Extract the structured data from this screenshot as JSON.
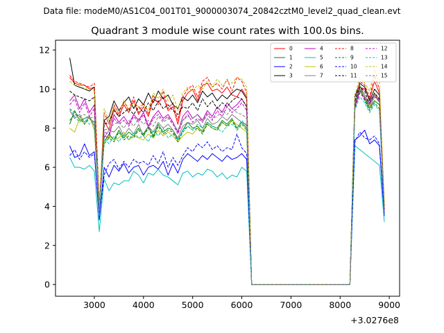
{
  "figure": {
    "suptitle": "Data file: modeM0/AS1C04_001T01_9000003074_20842cztM0_level2_quad_clean.evt",
    "title": "Quadrant 3 module wise count rates with 100.0s bins."
  },
  "chart_data": {
    "type": "line",
    "title": "Quadrant 3 module wise count rates with 100.0s bins.",
    "xlabel": "",
    "ylabel": "",
    "x_offset_label": "+3.0276e8",
    "xlim": [
      2210,
      9210
    ],
    "ylim": [
      -0.6,
      12.5
    ],
    "xticks": [
      3000,
      4000,
      5000,
      6000,
      7000,
      8000,
      9000
    ],
    "yticks": [
      0,
      2,
      4,
      6,
      8,
      10,
      12
    ],
    "grid": false,
    "legend": {
      "position": "top-right",
      "columns": 4
    },
    "x": [
      2500,
      2600,
      2700,
      2800,
      2900,
      3000,
      3100,
      3200,
      3300,
      3400,
      3500,
      3600,
      3700,
      3800,
      3900,
      4000,
      4100,
      4200,
      4300,
      4400,
      4500,
      4600,
      4700,
      4800,
      4900,
      5000,
      5100,
      5200,
      5300,
      5400,
      5500,
      5600,
      5700,
      5800,
      5900,
      6000,
      6100,
      6200,
      6300,
      6400,
      6500,
      6600,
      6700,
      6800,
      6900,
      7000,
      7100,
      7200,
      7300,
      7400,
      7500,
      7600,
      7700,
      7800,
      7900,
      8000,
      8100,
      8200,
      8300,
      8400,
      8500,
      8600,
      8700,
      8800,
      8900
    ],
    "series": [
      {
        "name": "0",
        "color": "#ff0000",
        "dash": "solid",
        "values": [
          10.6,
          10.3,
          10.2,
          10.2,
          10.0,
          10.1,
          3.8,
          8.4,
          7.9,
          9.0,
          8.6,
          9.2,
          8.8,
          9.4,
          8.7,
          9.1,
          8.6,
          9.5,
          9.3,
          9.6,
          8.9,
          9.1,
          8.2,
          9.4,
          9.8,
          10.0,
          9.4,
          10.2,
          10.3,
          9.9,
          10.0,
          9.8,
          10.1,
          9.7,
          9.6,
          10.0,
          9.6,
          0.0,
          0.0,
          0.0,
          0.0,
          0.0,
          0.0,
          0.0,
          0.0,
          0.0,
          0.0,
          0.0,
          0.0,
          0.0,
          0.0,
          0.0,
          0.0,
          0.0,
          0.0,
          0.0,
          0.0,
          0.0,
          9.0,
          10.1,
          10.0,
          9.5,
          10.4,
          9.8,
          3.8
        ]
      },
      {
        "name": "1",
        "color": "#008000",
        "dash": "solid",
        "values": [
          8.2,
          8.9,
          8.4,
          8.5,
          8.6,
          8.1,
          3.9,
          7.3,
          7.7,
          7.4,
          7.9,
          7.5,
          7.8,
          7.6,
          8.0,
          7.7,
          8.1,
          7.6,
          8.2,
          7.8,
          8.0,
          7.9,
          7.4,
          7.9,
          8.3,
          8.0,
          8.1,
          7.8,
          8.3,
          8.1,
          8.0,
          8.4,
          8.2,
          8.5,
          8.0,
          8.3,
          8.0,
          0.0,
          0.0,
          0.0,
          0.0,
          0.0,
          0.0,
          0.0,
          0.0,
          0.0,
          0.0,
          0.0,
          0.0,
          0.0,
          0.0,
          0.0,
          0.0,
          0.0,
          0.0,
          0.0,
          0.0,
          0.0,
          9.3,
          10.2,
          9.5,
          9.0,
          9.4,
          9.2,
          3.9
        ]
      },
      {
        "name": "2",
        "color": "#0000ff",
        "dash": "solid",
        "values": [
          7.1,
          6.5,
          6.6,
          7.2,
          6.6,
          6.8,
          3.3,
          6.0,
          5.5,
          6.1,
          5.8,
          6.2,
          5.7,
          6.0,
          6.1,
          5.6,
          6.0,
          6.1,
          5.9,
          6.3,
          5.6,
          6.2,
          5.7,
          6.4,
          6.7,
          6.5,
          6.3,
          6.6,
          6.4,
          6.7,
          6.5,
          6.3,
          6.6,
          6.4,
          6.5,
          6.7,
          6.4,
          0.0,
          0.0,
          0.0,
          0.0,
          0.0,
          0.0,
          0.0,
          0.0,
          0.0,
          0.0,
          0.0,
          0.0,
          0.0,
          0.0,
          0.0,
          0.0,
          0.0,
          0.0,
          0.0,
          0.0,
          0.0,
          7.4,
          7.6,
          7.9,
          7.2,
          7.4,
          7.1,
          3.5
        ]
      },
      {
        "name": "3",
        "color": "#000000",
        "dash": "solid",
        "values": [
          11.6,
          10.2,
          10.1,
          10.0,
          9.9,
          10.1,
          4.0,
          8.4,
          8.6,
          9.4,
          8.9,
          9.3,
          9.6,
          9.0,
          9.5,
          9.2,
          9.8,
          9.3,
          9.9,
          9.5,
          9.7,
          9.2,
          9.0,
          9.6,
          9.4,
          9.7,
          9.3,
          9.9,
          9.6,
          9.8,
          9.4,
          9.7,
          9.5,
          9.8,
          10.0,
          9.9,
          9.5,
          0.0,
          0.0,
          0.0,
          0.0,
          0.0,
          0.0,
          0.0,
          0.0,
          0.0,
          0.0,
          0.0,
          0.0,
          0.0,
          0.0,
          0.0,
          0.0,
          0.0,
          0.0,
          0.0,
          0.0,
          0.0,
          9.6,
          10.3,
          10.1,
          9.4,
          10.0,
          9.7,
          4.0
        ]
      },
      {
        "name": "4",
        "color": "#bf00bf",
        "dash": "solid",
        "values": [
          9.4,
          9.7,
          9.0,
          9.5,
          8.8,
          9.2,
          3.6,
          7.6,
          7.5,
          8.7,
          8.3,
          8.6,
          8.2,
          8.7,
          8.4,
          8.8,
          8.1,
          8.6,
          8.9,
          8.5,
          8.7,
          8.3,
          7.8,
          8.6,
          8.9,
          8.5,
          8.7,
          8.4,
          8.9,
          8.6,
          9.1,
          8.8,
          9.3,
          9.0,
          9.2,
          9.5,
          9.1,
          0.0,
          0.0,
          0.0,
          0.0,
          0.0,
          0.0,
          0.0,
          0.0,
          0.0,
          0.0,
          0.0,
          0.0,
          0.0,
          0.0,
          0.0,
          0.0,
          0.0,
          0.0,
          0.0,
          0.0,
          0.0,
          9.1,
          9.9,
          9.6,
          9.3,
          9.8,
          9.4,
          3.7
        ]
      },
      {
        "name": "5",
        "color": "#00bfbf",
        "dash": "solid",
        "values": [
          6.5,
          6.0,
          6.0,
          5.9,
          6.1,
          5.8,
          2.7,
          5.4,
          4.8,
          5.2,
          5.1,
          5.3,
          5.3,
          5.8,
          5.6,
          5.2,
          5.7,
          5.6,
          5.9,
          5.6,
          5.5,
          5.3,
          5.1,
          5.7,
          5.8,
          5.5,
          5.7,
          5.6,
          5.9,
          5.8,
          5.5,
          5.7,
          5.4,
          5.6,
          5.5,
          6.0,
          5.8,
          0.0,
          0.0,
          0.0,
          0.0,
          0.0,
          0.0,
          0.0,
          0.0,
          0.0,
          0.0,
          0.0,
          0.0,
          0.0,
          0.0,
          0.0,
          0.0,
          0.0,
          0.0,
          0.0,
          0.0,
          0.0,
          7.1,
          6.9,
          6.7,
          6.5,
          6.3,
          6.1,
          3.2
        ]
      },
      {
        "name": "6",
        "color": "#bfbf00",
        "dash": "solid",
        "values": [
          8.0,
          7.8,
          8.5,
          8.2,
          8.6,
          7.9,
          3.9,
          7.3,
          7.6,
          7.4,
          7.5,
          7.8,
          7.4,
          7.6,
          7.5,
          7.4,
          7.7,
          7.5,
          7.9,
          7.6,
          7.8,
          7.6,
          7.3,
          7.6,
          7.8,
          7.7,
          8.0,
          7.9,
          8.2,
          8.0,
          7.9,
          8.3,
          8.1,
          8.4,
          8.2,
          8.0,
          7.8,
          0.0,
          0.0,
          0.0,
          0.0,
          0.0,
          0.0,
          0.0,
          0.0,
          0.0,
          0.0,
          0.0,
          0.0,
          0.0,
          0.0,
          0.0,
          0.0,
          0.0,
          0.0,
          0.0,
          0.0,
          0.0,
          9.4,
          10.0,
          9.6,
          9.1,
          9.8,
          9.3,
          4.1
        ]
      },
      {
        "name": "7",
        "color": "#808080",
        "dash": "solid",
        "values": [
          8.9,
          8.5,
          8.7,
          8.3,
          8.6,
          8.1,
          3.7,
          7.5,
          7.9,
          7.8,
          8.1,
          7.6,
          8.0,
          7.7,
          8.2,
          7.6,
          8.1,
          7.8,
          8.3,
          8.0,
          8.2,
          7.9,
          7.5,
          8.1,
          8.3,
          8.2,
          8.4,
          8.0,
          8.5,
          8.2,
          8.3,
          8.6,
          8.4,
          8.7,
          8.5,
          8.3,
          8.2,
          0.0,
          0.0,
          0.0,
          0.0,
          0.0,
          0.0,
          0.0,
          0.0,
          0.0,
          0.0,
          0.0,
          0.0,
          0.0,
          0.0,
          0.0,
          0.0,
          0.0,
          0.0,
          0.0,
          0.0,
          0.0,
          9.2,
          10.2,
          9.7,
          9.0,
          9.6,
          9.4,
          3.9
        ]
      },
      {
        "name": "8",
        "color": "#ff0000",
        "dash": "dashed",
        "values": [
          10.7,
          10.4,
          10.3,
          10.2,
          10.1,
          10.3,
          3.8,
          8.8,
          8.2,
          9.2,
          8.7,
          9.4,
          8.9,
          9.6,
          8.8,
          9.3,
          8.7,
          9.7,
          9.2,
          9.9,
          9.0,
          9.3,
          8.4,
          9.6,
          10.0,
          10.2,
          9.6,
          10.4,
          10.6,
          10.1,
          10.3,
          10.0,
          10.5,
          9.9,
          10.6,
          10.4,
          9.8,
          0.0,
          0.0,
          0.0,
          0.0,
          0.0,
          0.0,
          0.0,
          0.0,
          0.0,
          0.0,
          0.0,
          0.0,
          0.0,
          0.0,
          0.0,
          0.0,
          0.0,
          0.0,
          0.0,
          0.0,
          0.0,
          9.3,
          10.4,
          10.2,
          9.6,
          10.7,
          10.0,
          3.9
        ]
      },
      {
        "name": "9",
        "color": "#008000",
        "dash": "dashed",
        "values": [
          8.4,
          8.7,
          8.6,
          8.2,
          8.5,
          8.3,
          3.9,
          7.2,
          7.5,
          7.3,
          7.8,
          7.4,
          7.6,
          7.5,
          7.9,
          7.6,
          8.0,
          7.5,
          8.1,
          7.7,
          7.9,
          7.8,
          7.3,
          7.8,
          8.1,
          7.9,
          8.0,
          7.7,
          8.2,
          8.0,
          7.9,
          8.3,
          8.1,
          8.4,
          7.9,
          8.2,
          7.9,
          0.0,
          0.0,
          0.0,
          0.0,
          0.0,
          0.0,
          0.0,
          0.0,
          0.0,
          0.0,
          0.0,
          0.0,
          0.0,
          0.0,
          0.0,
          0.0,
          0.0,
          0.0,
          0.0,
          0.0,
          0.0,
          9.1,
          10.0,
          9.4,
          8.9,
          9.3,
          9.0,
          3.8
        ]
      },
      {
        "name": "10",
        "color": "#0000ff",
        "dash": "dashed",
        "values": [
          6.6,
          6.9,
          6.4,
          6.8,
          6.5,
          6.7,
          3.4,
          5.6,
          6.2,
          6.4,
          5.9,
          6.3,
          6.0,
          6.4,
          6.2,
          6.3,
          6.1,
          6.6,
          6.2,
          6.8,
          6.0,
          6.5,
          6.1,
          6.6,
          7.0,
          6.8,
          7.2,
          7.0,
          7.3,
          6.9,
          7.1,
          6.8,
          7.0,
          6.9,
          7.7,
          7.0,
          6.7,
          0.0,
          0.0,
          0.0,
          0.0,
          0.0,
          0.0,
          0.0,
          0.0,
          0.0,
          0.0,
          0.0,
          0.0,
          0.0,
          0.0,
          0.0,
          0.0,
          0.0,
          0.0,
          0.0,
          0.0,
          0.0,
          7.3,
          7.8,
          7.5,
          7.4,
          7.6,
          7.2,
          3.6
        ]
      },
      {
        "name": "11",
        "color": "#000000",
        "dash": "dashed",
        "values": [
          9.9,
          9.7,
          9.6,
          9.5,
          9.4,
          9.6,
          3.9,
          8.2,
          8.3,
          8.9,
          8.6,
          8.8,
          9.0,
          8.7,
          9.1,
          8.8,
          9.3,
          8.9,
          9.4,
          9.0,
          9.2,
          8.9,
          8.7,
          9.1,
          9.0,
          9.3,
          8.9,
          9.5,
          9.1,
          9.4,
          9.0,
          9.3,
          9.1,
          9.4,
          9.6,
          9.5,
          9.1,
          0.0,
          0.0,
          0.0,
          0.0,
          0.0,
          0.0,
          0.0,
          0.0,
          0.0,
          0.0,
          0.0,
          0.0,
          0.0,
          0.0,
          0.0,
          0.0,
          0.0,
          0.0,
          0.0,
          0.0,
          0.0,
          9.4,
          10.1,
          9.9,
          9.2,
          9.8,
          9.5,
          3.9
        ]
      },
      {
        "name": "12",
        "color": "#bf00bf",
        "dash": "dashed",
        "values": [
          9.2,
          9.5,
          8.8,
          9.3,
          8.6,
          9.0,
          3.6,
          7.8,
          7.7,
          8.5,
          8.2,
          8.4,
          8.1,
          8.6,
          8.3,
          8.7,
          8.0,
          8.5,
          8.7,
          8.4,
          8.6,
          8.2,
          7.7,
          8.4,
          8.7,
          8.3,
          8.5,
          8.3,
          8.7,
          8.4,
          8.9,
          8.6,
          9.1,
          8.8,
          9.0,
          9.3,
          8.9,
          0.0,
          0.0,
          0.0,
          0.0,
          0.0,
          0.0,
          0.0,
          0.0,
          0.0,
          0.0,
          0.0,
          0.0,
          0.0,
          0.0,
          0.0,
          0.0,
          0.0,
          0.0,
          0.0,
          0.0,
          0.0,
          9.0,
          9.8,
          9.5,
          9.2,
          9.7,
          9.3,
          3.7
        ]
      },
      {
        "name": "13",
        "color": "#00bfbf",
        "dash": "dashed",
        "values": [
          9.0,
          8.6,
          8.3,
          8.5,
          8.2,
          8.4,
          3.5,
          7.5,
          7.2,
          7.6,
          7.3,
          7.7,
          7.4,
          7.8,
          7.5,
          7.6,
          7.3,
          7.9,
          7.6,
          8.0,
          7.5,
          7.7,
          7.4,
          7.9,
          8.1,
          7.9,
          8.2,
          8.0,
          8.3,
          8.1,
          8.0,
          7.8,
          8.1,
          8.2,
          8.0,
          8.4,
          8.1,
          0.0,
          0.0,
          0.0,
          0.0,
          0.0,
          0.0,
          0.0,
          0.0,
          0.0,
          0.0,
          0.0,
          0.0,
          0.0,
          0.0,
          0.0,
          0.0,
          0.0,
          0.0,
          0.0,
          0.0,
          0.0,
          8.9,
          9.6,
          9.3,
          8.8,
          9.2,
          8.9,
          3.6
        ]
      },
      {
        "name": "14",
        "color": "#bfbf00",
        "dash": "dashed",
        "values": [
          10.4,
          10.2,
          10.3,
          10.0,
          10.1,
          9.9,
          3.9,
          9.0,
          8.4,
          9.1,
          8.8,
          9.4,
          9.0,
          9.3,
          9.1,
          9.2,
          8.9,
          9.8,
          9.5,
          10.0,
          9.4,
          9.7,
          8.9,
          9.8,
          10.1,
          9.9,
          10.2,
          10.0,
          10.4,
          10.1,
          10.5,
          10.2,
          10.4,
          10.3,
          10.6,
          10.5,
          10.1,
          0.0,
          0.0,
          0.0,
          0.0,
          0.0,
          0.0,
          0.0,
          0.0,
          0.0,
          0.0,
          0.0,
          0.0,
          0.0,
          0.0,
          0.0,
          0.0,
          0.0,
          0.0,
          0.0,
          0.0,
          0.0,
          9.7,
          10.6,
          10.3,
          9.9,
          11.0,
          10.4,
          4.1
        ]
      },
      {
        "name": "15",
        "color": "#808080",
        "dash": "dashed",
        "values": [
          9.0,
          8.8,
          8.6,
          8.7,
          8.5,
          8.6,
          3.8,
          7.9,
          8.0,
          8.2,
          8.3,
          8.0,
          8.4,
          8.1,
          8.5,
          8.2,
          8.4,
          8.1,
          8.6,
          8.3,
          8.5,
          8.2,
          7.9,
          8.4,
          8.6,
          8.5,
          8.7,
          8.3,
          8.8,
          8.5,
          8.6,
          8.9,
          8.7,
          9.0,
          8.8,
          8.7,
          8.5,
          0.0,
          0.0,
          0.0,
          0.0,
          0.0,
          0.0,
          0.0,
          0.0,
          0.0,
          0.0,
          0.0,
          0.0,
          0.0,
          0.0,
          0.0,
          0.0,
          0.0,
          0.0,
          0.0,
          0.0,
          0.0,
          9.3,
          10.0,
          9.6,
          9.2,
          9.7,
          9.4,
          3.9
        ]
      }
    ]
  }
}
